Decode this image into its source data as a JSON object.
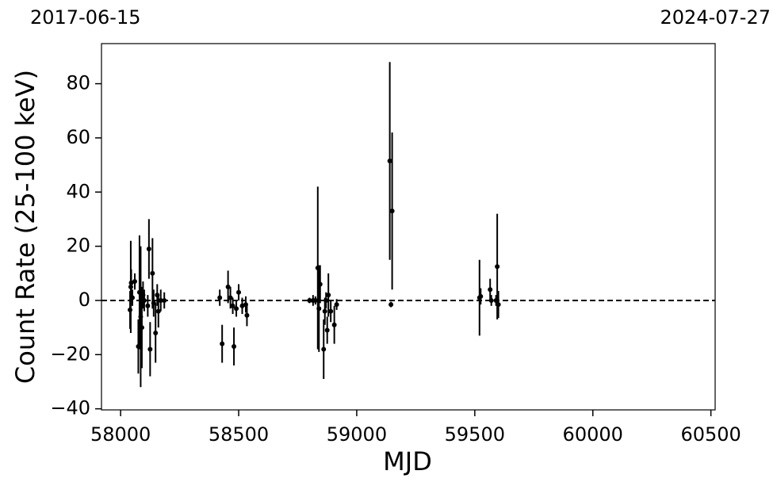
{
  "chart_data": {
    "type": "scatter",
    "xlabel": "MJD",
    "ylabel": "Count Rate (25-100 keV)",
    "x": [
      58040,
      58043,
      58045,
      58050,
      58060,
      58075,
      58080,
      58085,
      58090,
      58095,
      58100,
      58115,
      58120,
      58125,
      58135,
      58140,
      58148,
      58155,
      58160,
      58170,
      58185,
      58420,
      58430,
      58455,
      58465,
      58475,
      58480,
      58490,
      58500,
      58515,
      58530,
      58535,
      58800,
      58815,
      58825,
      58835,
      58840,
      58845,
      58860,
      58865,
      58870,
      58875,
      58880,
      58890,
      58905,
      58915,
      59140,
      59145,
      59150,
      59520,
      59525,
      59565,
      59570,
      59590,
      59595,
      59600
    ],
    "values": [
      -3.5,
      5,
      6.5,
      1,
      7,
      -17,
      3,
      -6,
      -10,
      2,
      0,
      -2,
      19,
      -18,
      10,
      -1,
      -12,
      2,
      -4,
      0,
      0,
      1,
      -16,
      5,
      1,
      -2,
      -17,
      -3,
      3,
      -2,
      -1.5,
      -5.5,
      0,
      0,
      0,
      12,
      -3,
      6,
      -18,
      -4,
      0,
      -11,
      2,
      -4,
      -9,
      -1.5,
      51.5,
      -1.5,
      33,
      1,
      1.5,
      4,
      0,
      0,
      12.5,
      -1.5
    ],
    "errors": [
      7,
      17,
      5,
      3,
      3,
      10,
      21,
      26,
      15,
      5,
      4,
      4,
      11,
      10,
      13,
      5,
      11,
      4,
      6,
      4,
      3,
      3,
      7,
      6,
      4,
      3,
      7,
      3,
      3,
      3,
      3,
      4,
      1,
      2,
      1.5,
      30,
      16,
      7,
      11,
      5,
      3,
      5,
      8,
      4,
      7,
      2,
      36.5,
      1,
      29,
      14,
      3,
      4,
      2,
      2,
      19.5,
      5
    ],
    "color": "#000000",
    "hline": 0,
    "xlim": [
      57919,
      60518
    ],
    "ylim": [
      -40.4,
      94.8
    ],
    "xticks": [
      58000,
      58500,
      59000,
      59500,
      60000,
      60500
    ],
    "yticks": [
      {
        "value": -40,
        "label": "−40"
      },
      {
        "value": -20,
        "label": "−20"
      },
      0,
      20,
      40,
      60,
      80
    ],
    "x2ticks": [
      {
        "value": 57919,
        "label": "2017-06-15"
      },
      {
        "value": 60518,
        "label": "2024-07-27"
      }
    ]
  }
}
